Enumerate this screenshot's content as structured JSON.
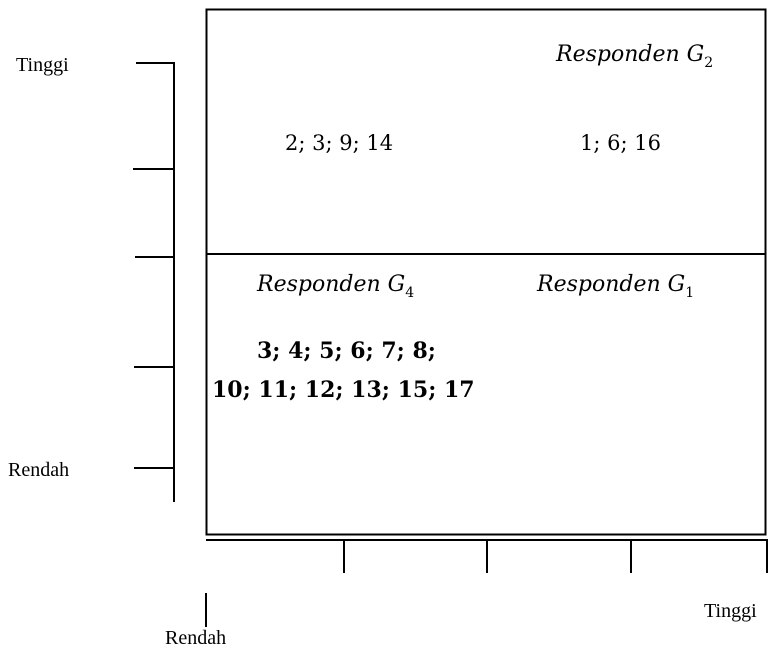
{
  "axes": {
    "y_axis": {
      "high_label": "Tinggi",
      "low_label": "Rendah"
    },
    "x_axis": {
      "high_label": "Tinggi",
      "low_label": "Rendah"
    }
  },
  "quadrants": {
    "top_right": {
      "title_base": "Responden G",
      "title_sub": "2",
      "items": "1; 6; 16"
    },
    "top_left": {
      "items": "2; 3; 9; 14"
    },
    "bottom_left": {
      "title_base": "Responden G",
      "title_sub": "4",
      "items_line1": "3; 4; 5; 6; 7; 8;",
      "items_line2": "10; 11; 12; 13; 15; 17"
    },
    "bottom_right": {
      "title_base": "Responden G",
      "title_sub": "1"
    }
  }
}
